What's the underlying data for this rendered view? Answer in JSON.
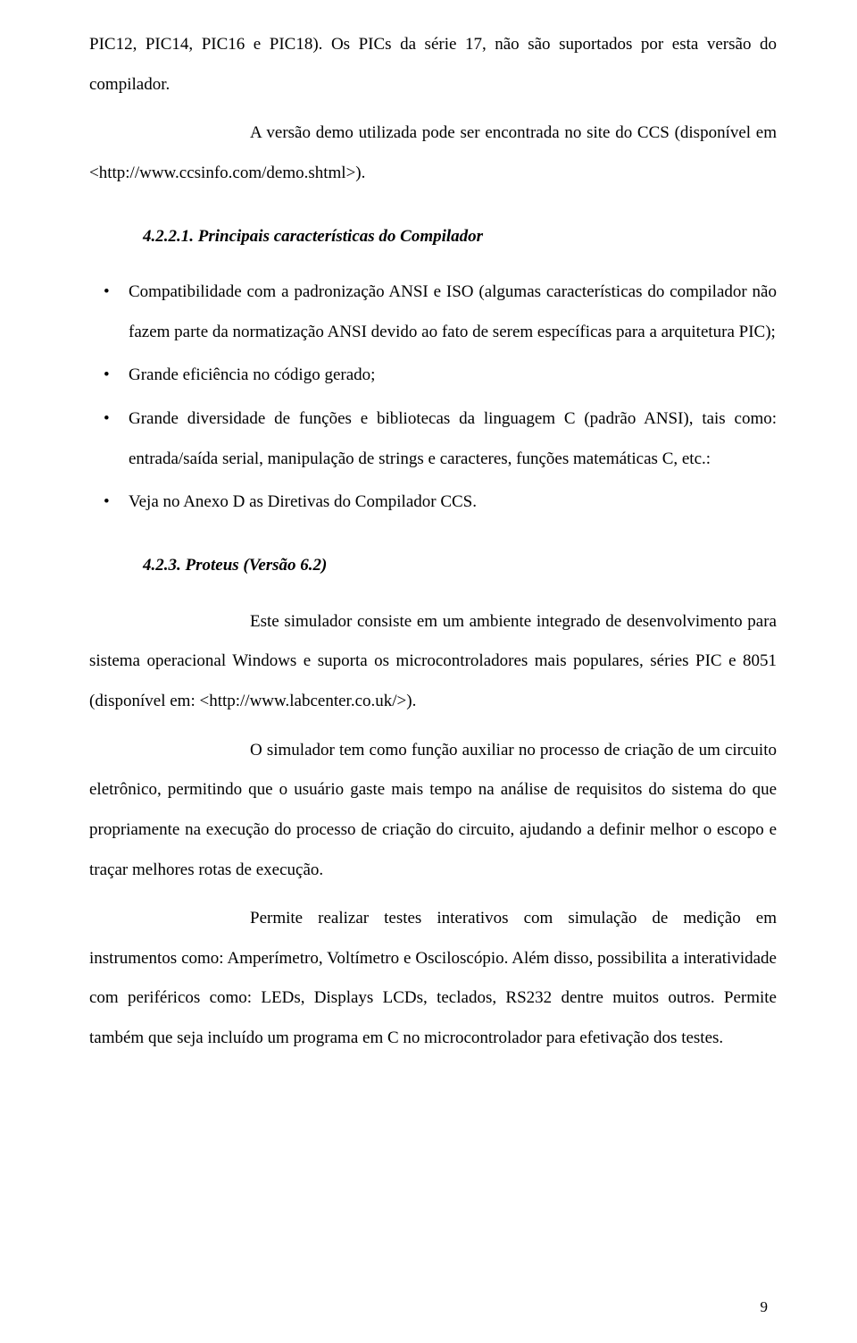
{
  "p_intro1": "PIC12, PIC14, PIC16 e PIC18). Os PICs da série 17, não são suportados por esta versão do compilador.",
  "p_intro2": "A versão demo utilizada pode ser encontrada no site do CCS (disponível em <http://www.ccsinfo.com/demo.shtml>).",
  "h1": "4.2.2.1.   Principais características do Compilador",
  "bullets": [
    "Compatibilidade com a padronização ANSI e ISO (algumas características do compilador não fazem parte da normatização ANSI devido ao fato de serem específicas para a arquitetura PIC);",
    "Grande eficiência no código gerado;",
    "Grande diversidade de funções e bibliotecas da linguagem C (padrão ANSI), tais como: entrada/saída serial, manipulação de strings e caracteres, funções matemáticas C, etc.:",
    "Veja no Anexo D as Diretivas do Compilador CCS."
  ],
  "h2": "4.2.3.  Proteus (Versão 6.2)",
  "p_proteus1": "Este simulador consiste em um ambiente integrado de desenvolvimento para sistema operacional Windows e suporta os microcontroladores mais populares, séries PIC e 8051 (disponível em: <http://www.labcenter.co.uk/>).",
  "p_proteus2": "O simulador tem como função auxiliar no processo de criação de um circuito eletrônico, permitindo que o usuário gaste mais tempo na análise de requisitos do sistema do que propriamente na execução do processo de criação do circuito, ajudando a definir melhor o escopo e traçar melhores rotas de execução.",
  "p_proteus3": "Permite realizar testes interativos com simulação de medição em instrumentos como: Amperímetro, Voltímetro e Osciloscópio. Além disso, possibilita a interatividade com periféricos como: LEDs, Displays LCDs, teclados, RS232 dentre muitos outros. Permite também que seja incluído um programa em C no microcontrolador para efetivação dos testes.",
  "page_number": "9"
}
